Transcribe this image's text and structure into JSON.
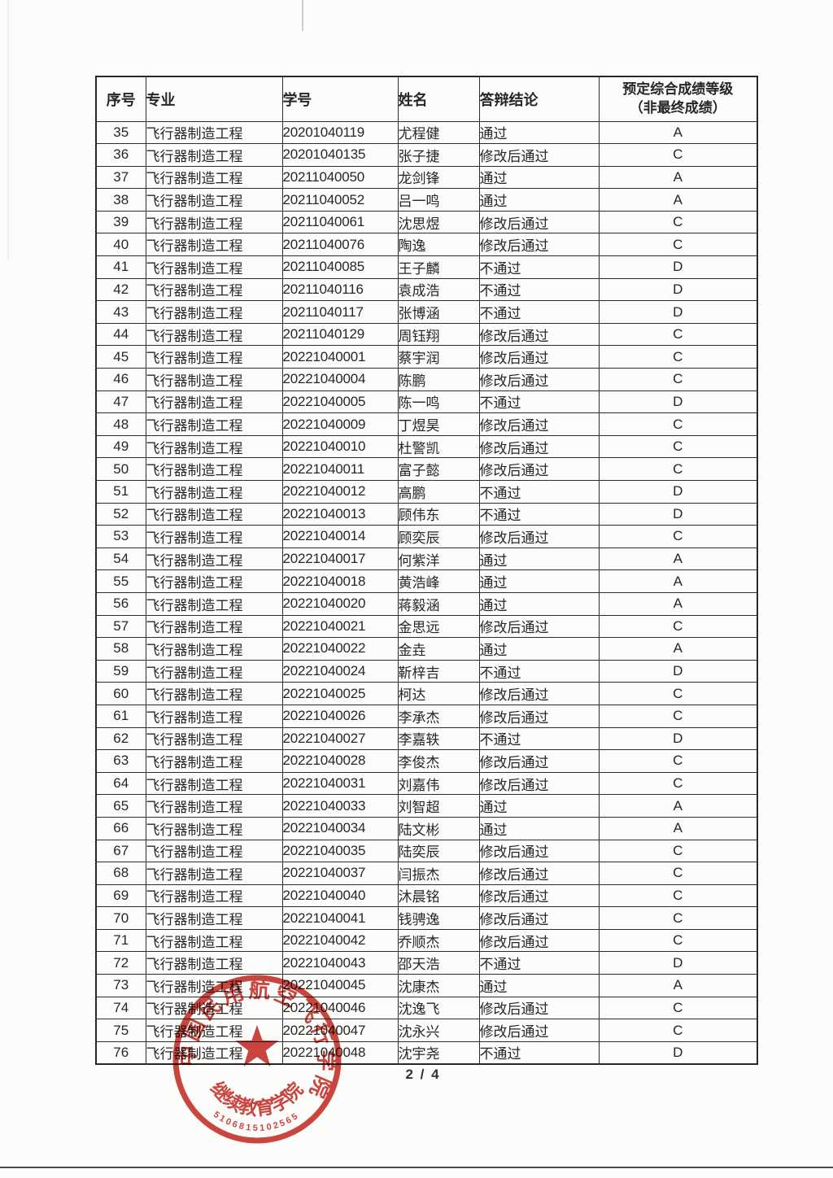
{
  "document": {
    "page_indicator": "2 / 4"
  },
  "table": {
    "columns": [
      "index",
      "major",
      "student_id",
      "name",
      "conclusion",
      "grade"
    ],
    "headers": {
      "index": "序号",
      "major": "专业",
      "student_id": "学号",
      "name": "姓名",
      "conclusion": "答辩结论",
      "grade_line1": "预定综合成绩等级",
      "grade_line2": "（非最终成绩）"
    },
    "rows": [
      [
        "35",
        "飞行器制造工程",
        "20201040119",
        "尤程健",
        "通过",
        "A"
      ],
      [
        "36",
        "飞行器制造工程",
        "20201040135",
        "张子捷",
        "修改后通过",
        "C"
      ],
      [
        "37",
        "飞行器制造工程",
        "20211040050",
        "龙剑锋",
        "通过",
        "A"
      ],
      [
        "38",
        "飞行器制造工程",
        "20211040052",
        "吕一鸣",
        "通过",
        "A"
      ],
      [
        "39",
        "飞行器制造工程",
        "20211040061",
        "沈思煜",
        "修改后通过",
        "C"
      ],
      [
        "40",
        "飞行器制造工程",
        "20211040076",
        "陶逸",
        "修改后通过",
        "C"
      ],
      [
        "41",
        "飞行器制造工程",
        "20211040085",
        "王子麟",
        "不通过",
        "D"
      ],
      [
        "42",
        "飞行器制造工程",
        "20211040116",
        "袁成浩",
        "不通过",
        "D"
      ],
      [
        "43",
        "飞行器制造工程",
        "20211040117",
        "张博涵",
        "不通过",
        "D"
      ],
      [
        "44",
        "飞行器制造工程",
        "20211040129",
        "周钰翔",
        "修改后通过",
        "C"
      ],
      [
        "45",
        "飞行器制造工程",
        "20221040001",
        "蔡宇润",
        "修改后通过",
        "C"
      ],
      [
        "46",
        "飞行器制造工程",
        "20221040004",
        "陈鹏",
        "修改后通过",
        "C"
      ],
      [
        "47",
        "飞行器制造工程",
        "20221040005",
        "陈一鸣",
        "不通过",
        "D"
      ],
      [
        "48",
        "飞行器制造工程",
        "20221040009",
        "丁煜昊",
        "修改后通过",
        "C"
      ],
      [
        "49",
        "飞行器制造工程",
        "20221040010",
        "杜警凯",
        "修改后通过",
        "C"
      ],
      [
        "50",
        "飞行器制造工程",
        "20221040011",
        "富子懿",
        "修改后通过",
        "C"
      ],
      [
        "51",
        "飞行器制造工程",
        "20221040012",
        "高鹏",
        "不通过",
        "D"
      ],
      [
        "52",
        "飞行器制造工程",
        "20221040013",
        "顾伟东",
        "不通过",
        "D"
      ],
      [
        "53",
        "飞行器制造工程",
        "20221040014",
        "顾奕辰",
        "修改后通过",
        "C"
      ],
      [
        "54",
        "飞行器制造工程",
        "20221040017",
        "何紫洋",
        "通过",
        "A"
      ],
      [
        "55",
        "飞行器制造工程",
        "20221040018",
        "黄浩峰",
        "通过",
        "A"
      ],
      [
        "56",
        "飞行器制造工程",
        "20221040020",
        "蒋毅涵",
        "通过",
        "A"
      ],
      [
        "57",
        "飞行器制造工程",
        "20221040021",
        "金思远",
        "修改后通过",
        "C"
      ],
      [
        "58",
        "飞行器制造工程",
        "20221040022",
        "金垚",
        "通过",
        "A"
      ],
      [
        "59",
        "飞行器制造工程",
        "20221040024",
        "靳梓吉",
        "不通过",
        "D"
      ],
      [
        "60",
        "飞行器制造工程",
        "20221040025",
        "柯达",
        "修改后通过",
        "C"
      ],
      [
        "61",
        "飞行器制造工程",
        "20221040026",
        "李承杰",
        "修改后通过",
        "C"
      ],
      [
        "62",
        "飞行器制造工程",
        "20221040027",
        "李嘉轶",
        "不通过",
        "D"
      ],
      [
        "63",
        "飞行器制造工程",
        "20221040028",
        "李俊杰",
        "修改后通过",
        "C"
      ],
      [
        "64",
        "飞行器制造工程",
        "20221040031",
        "刘嘉伟",
        "修改后通过",
        "C"
      ],
      [
        "65",
        "飞行器制造工程",
        "20221040033",
        "刘智超",
        "通过",
        "A"
      ],
      [
        "66",
        "飞行器制造工程",
        "20221040034",
        "陆文彬",
        "通过",
        "A"
      ],
      [
        "67",
        "飞行器制造工程",
        "20221040035",
        "陆奕辰",
        "修改后通过",
        "C"
      ],
      [
        "68",
        "飞行器制造工程",
        "20221040037",
        "闫振杰",
        "修改后通过",
        "C"
      ],
      [
        "69",
        "飞行器制造工程",
        "20221040040",
        "沐晨铭",
        "修改后通过",
        "C"
      ],
      [
        "70",
        "飞行器制造工程",
        "20221040041",
        "钱骋逸",
        "修改后通过",
        "C"
      ],
      [
        "71",
        "飞行器制造工程",
        "20221040042",
        "乔顺杰",
        "修改后通过",
        "C"
      ],
      [
        "72",
        "飞行器制造工程",
        "20221040043",
        "邵天浩",
        "不通过",
        "D"
      ],
      [
        "73",
        "飞行器制造工程",
        "20221040045",
        "沈康杰",
        "通过",
        "A"
      ],
      [
        "74",
        "飞行器制造工程",
        "20221040046",
        "沈逸飞",
        "修改后通过",
        "C"
      ],
      [
        "75",
        "飞行器制造工程",
        "20221040047",
        "沈永兴",
        "修改后通过",
        "C"
      ],
      [
        "76",
        "飞行器制造工程",
        "20221040048",
        "沈宇尧",
        "不通过",
        "D"
      ]
    ]
  },
  "stamp": {
    "outer_text": "中国民用航空飞行学院",
    "inner_text": "继续教育学院",
    "serial": "5106815102565",
    "color": "#c9322b"
  }
}
